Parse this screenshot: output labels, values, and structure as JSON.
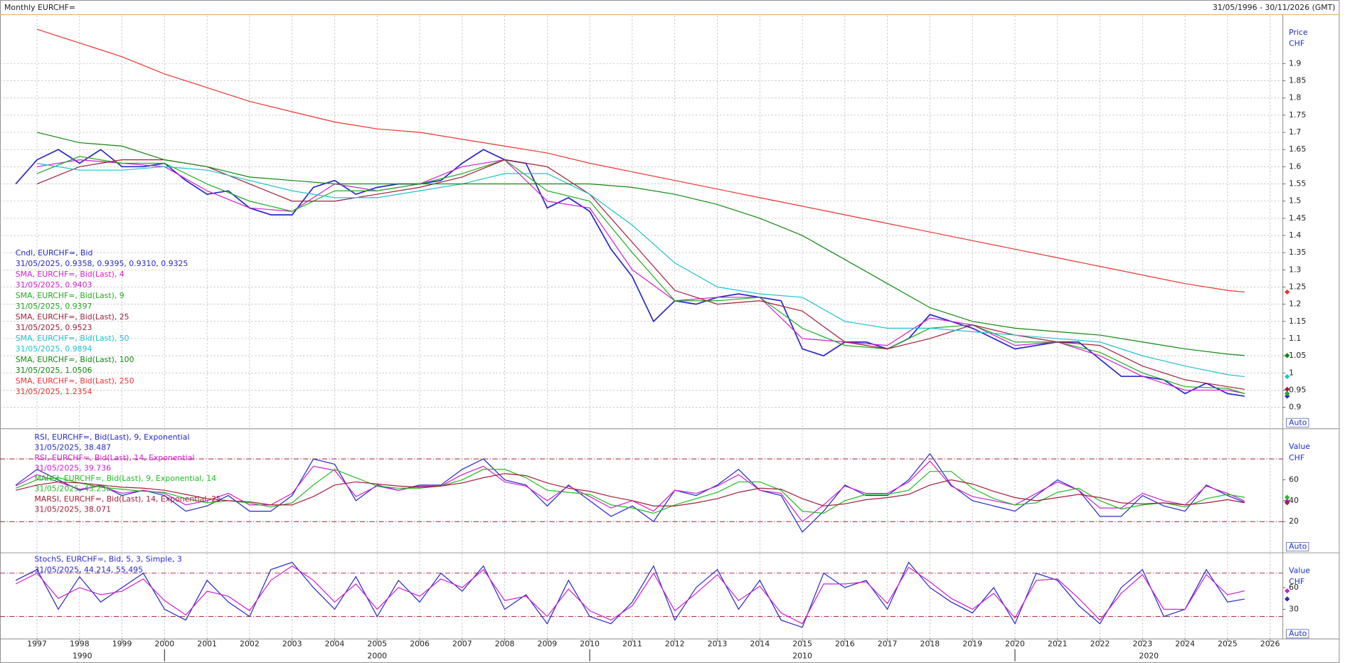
{
  "header": {
    "title": "Monthly EURCHF=",
    "range": "31/05/1996 - 30/11/2026 (GMT)"
  },
  "x_axis": {
    "xlim": [
      1996.13,
      2026.3
    ],
    "xticks": [
      1997,
      1998,
      1999,
      2000,
      2001,
      2002,
      2003,
      2004,
      2005,
      2006,
      2007,
      2008,
      2009,
      2010,
      2011,
      2012,
      2013,
      2014,
      2015,
      2016,
      2017,
      2018,
      2019,
      2020,
      2021,
      2022,
      2023,
      2024,
      2025,
      2026
    ],
    "xticks2": [
      1990,
      2000,
      2010,
      2020
    ]
  },
  "chart_data": [
    {
      "type": "line",
      "axis_labels": [
        "Price",
        "CHF"
      ],
      "scale_button": "Auto",
      "grid": true,
      "ylim": [
        0.84,
        2.04
      ],
      "yticks": [
        0.9,
        0.95,
        1,
        1.05,
        1.1,
        1.15,
        1.2,
        1.25,
        1.3,
        1.35,
        1.4,
        1.45,
        1.5,
        1.55,
        1.6,
        1.65,
        1.7,
        1.75,
        1.8,
        1.85,
        1.9
      ],
      "x": [
        1997,
        1998,
        1999,
        2000,
        2001,
        2002,
        2003,
        2004,
        2005,
        2006,
        2007,
        2008,
        2009,
        2010,
        2011,
        2012,
        2013,
        2014,
        2015,
        2016,
        2017,
        2018,
        2019,
        2020,
        2021,
        2022,
        2023,
        2024,
        2025,
        2025.4
      ],
      "series": [
        {
          "name": "Cndl, EURCHF=, Bid",
          "last_label": "31/05/2025, 0.9358, 0.9395, 0.9310, 0.9325",
          "color": "#2828c8",
          "x": [
            1996.5,
            1997,
            1997.5,
            1998,
            1998.5,
            1999,
            1999.5,
            2000,
            2000.5,
            2001,
            2001.5,
            2002,
            2002.5,
            2003,
            2003.5,
            2004,
            2004.5,
            2005,
            2005.5,
            2006,
            2006.5,
            2007,
            2007.5,
            2008,
            2008.5,
            2009,
            2009.5,
            2010,
            2010.5,
            2011,
            2011.5,
            2012,
            2012.5,
            2013,
            2013.5,
            2014,
            2014.5,
            2015,
            2015.5,
            2016,
            2016.5,
            2017,
            2017.5,
            2018,
            2018.5,
            2019,
            2019.5,
            2020,
            2020.5,
            2021,
            2021.5,
            2022,
            2022.5,
            2023,
            2023.5,
            2024,
            2024.5,
            2025,
            2025.4
          ],
          "values": [
            1.55,
            1.62,
            1.65,
            1.61,
            1.65,
            1.6,
            1.6,
            1.61,
            1.56,
            1.52,
            1.53,
            1.48,
            1.46,
            1.46,
            1.54,
            1.56,
            1.52,
            1.54,
            1.55,
            1.55,
            1.56,
            1.61,
            1.65,
            1.62,
            1.61,
            1.48,
            1.51,
            1.47,
            1.36,
            1.28,
            1.15,
            1.21,
            1.2,
            1.22,
            1.23,
            1.22,
            1.21,
            1.07,
            1.05,
            1.09,
            1.09,
            1.07,
            1.1,
            1.17,
            1.15,
            1.13,
            1.1,
            1.07,
            1.08,
            1.09,
            1.09,
            1.04,
            0.99,
            0.99,
            0.98,
            0.94,
            0.97,
            0.94,
            0.9325
          ]
        },
        {
          "name": "SMA, EURCHF=, Bid(Last),  4",
          "last_label": "31/05/2025, 0.9403",
          "color": "#d020d0",
          "values": [
            1.6,
            1.62,
            1.61,
            1.6,
            1.53,
            1.48,
            1.47,
            1.55,
            1.53,
            1.55,
            1.6,
            1.62,
            1.5,
            1.48,
            1.3,
            1.21,
            1.22,
            1.22,
            1.1,
            1.09,
            1.08,
            1.16,
            1.14,
            1.08,
            1.09,
            1.05,
            0.99,
            0.95,
            0.95,
            0.9403
          ]
        },
        {
          "name": "SMA, EURCHF=, Bid(Last),  9",
          "last_label": "31/05/2025, 0.9397",
          "color": "#22aa22",
          "values": [
            1.58,
            1.63,
            1.61,
            1.61,
            1.55,
            1.5,
            1.47,
            1.53,
            1.53,
            1.55,
            1.58,
            1.62,
            1.53,
            1.5,
            1.35,
            1.21,
            1.21,
            1.22,
            1.13,
            1.08,
            1.07,
            1.13,
            1.14,
            1.09,
            1.09,
            1.06,
            1,
            0.96,
            0.955,
            0.9397
          ]
        },
        {
          "name": "SMA, EURCHF=, Bid(Last),  25",
          "last_label": "31/05/2025, 0.9523",
          "color": "#a0203a",
          "values": [
            1.55,
            1.6,
            1.62,
            1.62,
            1.6,
            1.55,
            1.5,
            1.5,
            1.52,
            1.54,
            1.57,
            1.62,
            1.6,
            1.52,
            1.38,
            1.24,
            1.2,
            1.21,
            1.18,
            1.09,
            1.07,
            1.1,
            1.14,
            1.11,
            1.09,
            1.08,
            1.02,
            0.98,
            0.96,
            0.9523
          ]
        },
        {
          "name": "SMA, EURCHF=, Bid(Last),  50",
          "last_label": "31/05/2025, 0.9894",
          "color": "#22c0d0",
          "values": [
            1.61,
            1.59,
            1.59,
            1.6,
            1.59,
            1.56,
            1.53,
            1.51,
            1.51,
            1.53,
            1.55,
            1.58,
            1.58,
            1.52,
            1.43,
            1.32,
            1.25,
            1.23,
            1.22,
            1.15,
            1.13,
            1.13,
            1.12,
            1.11,
            1.1,
            1.09,
            1.05,
            1.02,
            0.995,
            0.9894
          ]
        },
        {
          "name": "SMA, EURCHF=, Bid(Last),  100",
          "last_label": "31/05/2025, 1.0506",
          "color": "#118811",
          "values": [
            1.7,
            1.67,
            1.66,
            1.62,
            1.6,
            1.57,
            1.56,
            1.55,
            1.55,
            1.55,
            1.55,
            1.55,
            1.55,
            1.55,
            1.54,
            1.52,
            1.49,
            1.45,
            1.4,
            1.33,
            1.26,
            1.19,
            1.15,
            1.13,
            1.12,
            1.11,
            1.09,
            1.07,
            1.055,
            1.0506
          ]
        },
        {
          "name": "SMA, EURCHF=, Bid(Last),  250",
          "last_label": "31/05/2025, 1.2354",
          "color": "#ee3333",
          "values": [
            2,
            1.96,
            1.92,
            1.87,
            1.83,
            1.79,
            1.76,
            1.73,
            1.71,
            1.7,
            1.68,
            1.66,
            1.64,
            1.61,
            1.585,
            1.56,
            1.535,
            1.51,
            1.485,
            1.46,
            1.435,
            1.41,
            1.385,
            1.36,
            1.335,
            1.31,
            1.285,
            1.26,
            1.24,
            1.2354
          ]
        }
      ]
    },
    {
      "type": "line",
      "axis_labels": [
        "Value",
        "CHF"
      ],
      "scale_button": "Auto",
      "grid": false,
      "ylim": [
        -9,
        108
      ],
      "yticks": [
        20,
        40,
        60
      ],
      "levels": [
        20,
        80
      ],
      "x": [
        1996.5,
        1997,
        1997.5,
        1998,
        1998.5,
        1999,
        1999.5,
        2000,
        2000.5,
        2001,
        2001.5,
        2002,
        2002.5,
        2003,
        2003.5,
        2004,
        2004.5,
        2005,
        2005.5,
        2006,
        2006.5,
        2007,
        2007.5,
        2008,
        2008.5,
        2009,
        2009.5,
        2010,
        2010.5,
        2011,
        2011.5,
        2012,
        2012.5,
        2013,
        2013.5,
        2014,
        2014.5,
        2015,
        2015.5,
        2016,
        2016.5,
        2017,
        2017.5,
        2018,
        2018.5,
        2019,
        2019.5,
        2020,
        2020.5,
        2021,
        2021.5,
        2022,
        2022.5,
        2023,
        2023.5,
        2024,
        2024.5,
        2025,
        2025.4
      ],
      "series": [
        {
          "name": "RSI, EURCHF=, Bid(Last),  9, Exponential",
          "last_label": "31/05/2025, 38.487",
          "color": "#2828c8",
          "values": [
            55,
            70,
            60,
            50,
            55,
            45,
            50,
            45,
            30,
            35,
            45,
            30,
            30,
            45,
            80,
            75,
            40,
            55,
            50,
            55,
            55,
            70,
            80,
            60,
            55,
            35,
            55,
            40,
            25,
            35,
            20,
            50,
            45,
            55,
            70,
            50,
            45,
            10,
            30,
            55,
            45,
            45,
            60,
            85,
            55,
            40,
            35,
            30,
            45,
            60,
            50,
            25,
            25,
            45,
            35,
            30,
            55,
            45,
            38.487
          ]
        },
        {
          "name": "RSI, EURCHF=, Bid(Last), 14, Exponential",
          "last_label": "31/05/2025, 39.736",
          "color": "#d020d0",
          "values": [
            54,
            65,
            58,
            51,
            54,
            47,
            50,
            47,
            36,
            40,
            47,
            36,
            36,
            47,
            73,
            69,
            44,
            54,
            50,
            54,
            54,
            65,
            73,
            58,
            54,
            40,
            54,
            44,
            33,
            40,
            30,
            50,
            47,
            54,
            65,
            50,
            47,
            20,
            36,
            54,
            47,
            47,
            58,
            78,
            54,
            44,
            40,
            36,
            47,
            58,
            50,
            33,
            33,
            47,
            40,
            36,
            54,
            47,
            39.736
          ]
        },
        {
          "name": "MARSI, EURCHF=, Bid(Last), 9, Exponential, 14",
          "last_label": "31/05/2025, 43.256",
          "color": "#22bb22",
          "values": [
            52,
            60,
            62,
            57,
            53,
            51,
            49,
            48,
            42,
            38,
            40,
            38,
            34,
            38,
            55,
            70,
            62,
            54,
            52,
            52,
            54,
            60,
            70,
            70,
            62,
            50,
            48,
            46,
            36,
            33,
            28,
            36,
            42,
            48,
            58,
            58,
            50,
            30,
            28,
            40,
            46,
            46,
            50,
            68,
            68,
            52,
            42,
            36,
            38,
            48,
            52,
            40,
            32,
            36,
            38,
            34,
            42,
            46,
            43.256
          ]
        },
        {
          "name": "MARSI, EURCHF=, Bid(Last), 14, Exponential, 25",
          "last_label": "31/05/2025, 38.071",
          "color": "#a0203a",
          "values": [
            50,
            55,
            58,
            57,
            55,
            53,
            52,
            50,
            46,
            42,
            40,
            39,
            36,
            36,
            44,
            55,
            58,
            56,
            54,
            53,
            54,
            57,
            62,
            66,
            64,
            57,
            52,
            49,
            44,
            40,
            35,
            35,
            38,
            42,
            48,
            52,
            51,
            42,
            35,
            37,
            41,
            43,
            46,
            55,
            60,
            56,
            49,
            43,
            40,
            43,
            46,
            43,
            38,
            37,
            38,
            36,
            38,
            41,
            38.071
          ]
        }
      ]
    },
    {
      "type": "line",
      "axis_labels": [
        "Value",
        "CHF"
      ],
      "scale_button": "Auto",
      "grid": false,
      "ylim": [
        -11,
        107
      ],
      "yticks": [
        30,
        60
      ],
      "levels": [
        20,
        80
      ],
      "legend": {
        "name": "StochS, EURCHF=, Bid,  5, 3, Simple, 3",
        "last_label": "31/05/2025, 44.214, 55.495"
      },
      "x": [
        1996.5,
        1997,
        1997.5,
        1998,
        1998.5,
        1999,
        1999.5,
        2000,
        2000.5,
        2001,
        2001.5,
        2002,
        2002.5,
        2003,
        2003.5,
        2004,
        2004.5,
        2005,
        2005.5,
        2006,
        2006.5,
        2007,
        2007.5,
        2008,
        2008.5,
        2009,
        2009.5,
        2010,
        2010.5,
        2011,
        2011.5,
        2012,
        2012.5,
        2013,
        2013.5,
        2014,
        2014.5,
        2015,
        2015.5,
        2016,
        2016.5,
        2017,
        2017.5,
        2018,
        2018.5,
        2019,
        2019.5,
        2020,
        2020.5,
        2021,
        2021.5,
        2022,
        2022.5,
        2023,
        2023.5,
        2024,
        2024.5,
        2025,
        2025.4
      ],
      "series": [
        {
          "color": "#2828c8",
          "values": [
            70,
            85,
            30,
            75,
            40,
            60,
            80,
            30,
            15,
            70,
            40,
            20,
            85,
            95,
            60,
            30,
            75,
            20,
            70,
            40,
            80,
            55,
            90,
            30,
            50,
            10,
            70,
            20,
            10,
            40,
            90,
            15,
            60,
            85,
            30,
            70,
            15,
            5,
            80,
            60,
            70,
            30,
            95,
            60,
            40,
            25,
            60,
            10,
            80,
            70,
            35,
            10,
            60,
            85,
            20,
            30,
            85,
            40,
            44.214
          ]
        },
        {
          "color": "#d020d0",
          "values": [
            65,
            80,
            45,
            60,
            50,
            55,
            72,
            42,
            22,
            55,
            48,
            28,
            70,
            90,
            70,
            40,
            65,
            30,
            60,
            48,
            72,
            60,
            85,
            42,
            48,
            20,
            58,
            28,
            15,
            35,
            80,
            28,
            52,
            78,
            42,
            62,
            25,
            10,
            65,
            65,
            68,
            38,
            88,
            68,
            45,
            30,
            52,
            18,
            70,
            72,
            45,
            15,
            52,
            78,
            30,
            30,
            78,
            50,
            55.495
          ]
        }
      ]
    }
  ]
}
